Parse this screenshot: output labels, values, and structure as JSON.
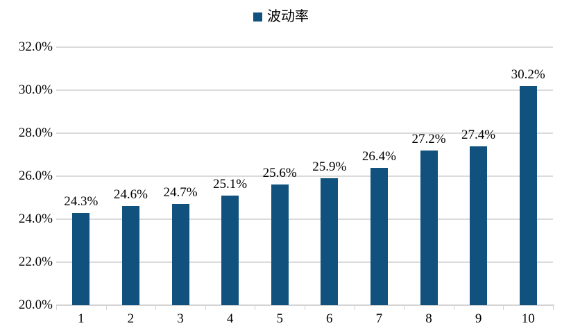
{
  "chart_data": {
    "type": "bar",
    "title": "",
    "legend": "波动率",
    "legend_position": "top-center",
    "categories": [
      "1",
      "2",
      "3",
      "4",
      "5",
      "6",
      "7",
      "8",
      "9",
      "10"
    ],
    "series": [
      {
        "name": "波动率",
        "values": [
          24.3,
          24.6,
          24.7,
          25.1,
          25.6,
          25.9,
          26.4,
          27.2,
          27.4,
          30.2
        ]
      }
    ],
    "data_labels": [
      "24.3%",
      "24.6%",
      "24.7%",
      "25.1%",
      "25.6%",
      "25.9%",
      "26.4%",
      "27.2%",
      "27.4%",
      "30.2%"
    ],
    "xlabel": "",
    "ylabel": "",
    "ylim": [
      20,
      32
    ],
    "ytick_step": 2,
    "ytick_labels": [
      "20.0%",
      "22.0%",
      "24.0%",
      "26.0%",
      "28.0%",
      "30.0%",
      "32.0%"
    ],
    "grid": "horizontal",
    "colors": {
      "bar": "#10527D",
      "gridline": "#DBDBDB",
      "axis": "#D4D4D4",
      "text": "#000000",
      "background": "#FFFFFF"
    }
  }
}
